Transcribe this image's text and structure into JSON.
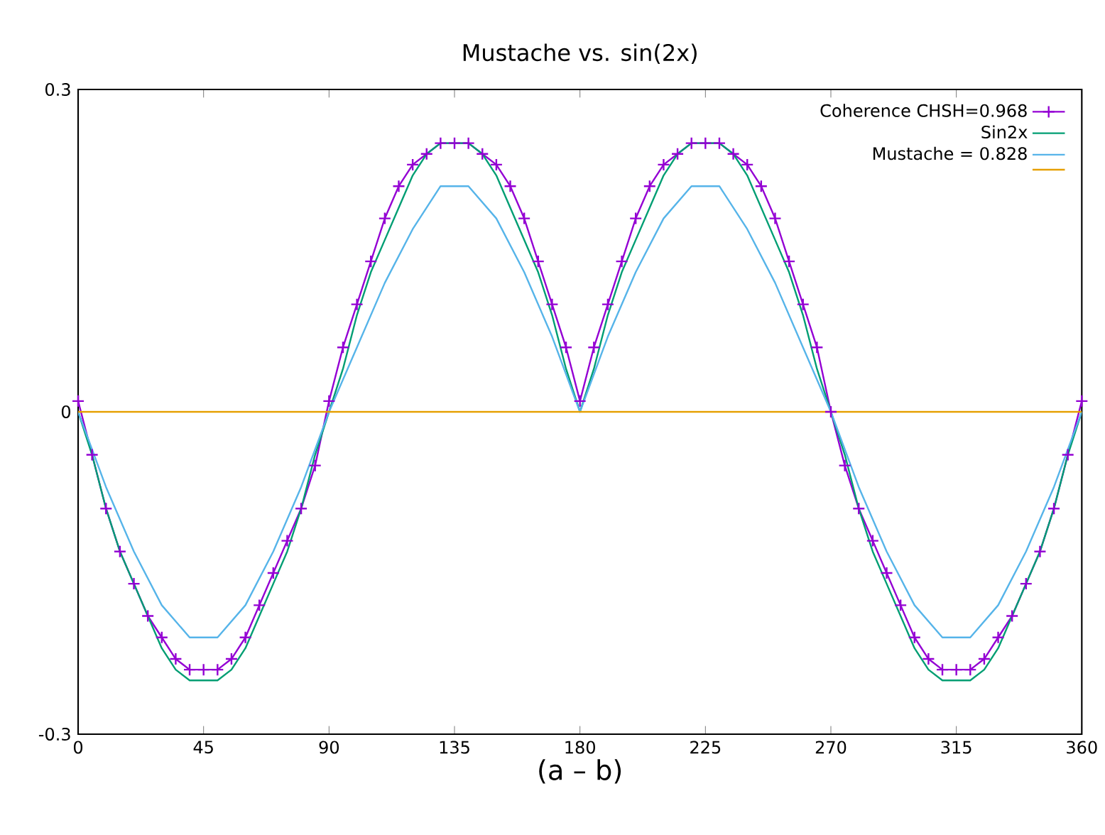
{
  "chart_data": {
    "type": "line",
    "title": "Mustache vs. sin(2x)",
    "xlabel": "(a – b)",
    "xlim": [
      0,
      360
    ],
    "xticks": [
      0,
      45,
      90,
      135,
      180,
      225,
      270,
      315,
      360
    ],
    "ylim": [
      -0.3,
      0.3
    ],
    "yticks": [
      -0.3,
      0,
      0.3
    ],
    "grid": false,
    "legend": "top right",
    "series": [
      {
        "name": "Coherence CHSH=0.968",
        "color": "#9400d3",
        "marker": "cross",
        "x": [
          0,
          5,
          10,
          15,
          20,
          25,
          30,
          35,
          40,
          45,
          50,
          55,
          60,
          65,
          70,
          75,
          80,
          85,
          90,
          95,
          100,
          105,
          110,
          115,
          120,
          125,
          130,
          135,
          140,
          145,
          150,
          155,
          160,
          165,
          170,
          175,
          180,
          185,
          190,
          195,
          200,
          205,
          210,
          215,
          220,
          225,
          230,
          235,
          240,
          245,
          250,
          255,
          260,
          265,
          270,
          275,
          280,
          285,
          290,
          295,
          300,
          305,
          310,
          315,
          320,
          325,
          330,
          335,
          340,
          345,
          350,
          355,
          360
        ],
        "values": [
          0.01,
          -0.04,
          -0.09,
          -0.13,
          -0.16,
          -0.19,
          -0.21,
          -0.23,
          -0.24,
          -0.24,
          -0.24,
          -0.23,
          -0.21,
          -0.18,
          -0.15,
          -0.12,
          -0.09,
          -0.05,
          0.01,
          0.06,
          0.1,
          0.14,
          0.18,
          0.21,
          0.23,
          0.24,
          0.25,
          0.25,
          0.25,
          0.24,
          0.23,
          0.21,
          0.18,
          0.14,
          0.1,
          0.06,
          0.01,
          0.06,
          0.1,
          0.14,
          0.18,
          0.21,
          0.23,
          0.24,
          0.25,
          0.25,
          0.25,
          0.24,
          0.23,
          0.21,
          0.18,
          0.14,
          0.1,
          0.06,
          0.0,
          -0.05,
          -0.09,
          -0.12,
          -0.15,
          -0.18,
          -0.21,
          -0.23,
          -0.24,
          -0.24,
          -0.24,
          -0.23,
          -0.21,
          -0.19,
          -0.16,
          -0.13,
          -0.09,
          -0.04,
          0.01
        ]
      },
      {
        "name": "Sin2x",
        "color": "#009e73",
        "x": [
          0,
          5,
          10,
          15,
          20,
          25,
          30,
          35,
          40,
          45,
          50,
          55,
          60,
          65,
          70,
          75,
          80,
          85,
          90,
          95,
          100,
          105,
          110,
          115,
          120,
          125,
          130,
          135,
          140,
          145,
          150,
          155,
          160,
          165,
          170,
          175,
          180,
          185,
          190,
          195,
          200,
          205,
          210,
          215,
          220,
          225,
          230,
          235,
          240,
          245,
          250,
          255,
          260,
          265,
          270,
          275,
          280,
          285,
          290,
          295,
          300,
          305,
          310,
          315,
          320,
          325,
          330,
          335,
          340,
          345,
          350,
          355,
          360
        ],
        "values": [
          0,
          -0.04,
          -0.09,
          -0.13,
          -0.16,
          -0.19,
          -0.22,
          -0.24,
          -0.25,
          -0.25,
          -0.25,
          -0.24,
          -0.22,
          -0.19,
          -0.16,
          -0.13,
          -0.09,
          -0.04,
          0,
          0.04,
          0.09,
          0.13,
          0.16,
          0.19,
          0.22,
          0.24,
          0.25,
          0.25,
          0.25,
          0.24,
          0.22,
          0.19,
          0.16,
          0.13,
          0.09,
          0.04,
          0,
          0.04,
          0.09,
          0.13,
          0.16,
          0.19,
          0.22,
          0.24,
          0.25,
          0.25,
          0.25,
          0.24,
          0.22,
          0.19,
          0.16,
          0.13,
          0.09,
          0.04,
          0,
          -0.04,
          -0.09,
          -0.13,
          -0.16,
          -0.19,
          -0.22,
          -0.24,
          -0.25,
          -0.25,
          -0.25,
          -0.24,
          -0.22,
          -0.19,
          -0.16,
          -0.13,
          -0.09,
          -0.04,
          0
        ]
      },
      {
        "name": "Mustache = 0.828",
        "color": "#56b4e9",
        "x": [
          0,
          10,
          20,
          30,
          40,
          45,
          50,
          60,
          70,
          80,
          90,
          100,
          110,
          120,
          130,
          135,
          140,
          150,
          160,
          170,
          180,
          190,
          200,
          210,
          220,
          225,
          230,
          240,
          250,
          260,
          270,
          280,
          290,
          300,
          310,
          315,
          320,
          330,
          340,
          350,
          360
        ],
        "values": [
          0,
          -0.07,
          -0.13,
          -0.18,
          -0.21,
          -0.21,
          -0.21,
          -0.18,
          -0.13,
          -0.07,
          0,
          0.06,
          0.12,
          0.17,
          0.21,
          0.21,
          0.21,
          0.18,
          0.13,
          0.07,
          0,
          0.07,
          0.13,
          0.18,
          0.21,
          0.21,
          0.21,
          0.17,
          0.12,
          0.06,
          0,
          -0.07,
          -0.13,
          -0.18,
          -0.21,
          -0.21,
          -0.21,
          -0.18,
          -0.13,
          -0.07,
          0
        ]
      },
      {
        "color": "#e69f00",
        "x": [
          0,
          360
        ],
        "values": [
          0,
          0
        ]
      }
    ]
  }
}
